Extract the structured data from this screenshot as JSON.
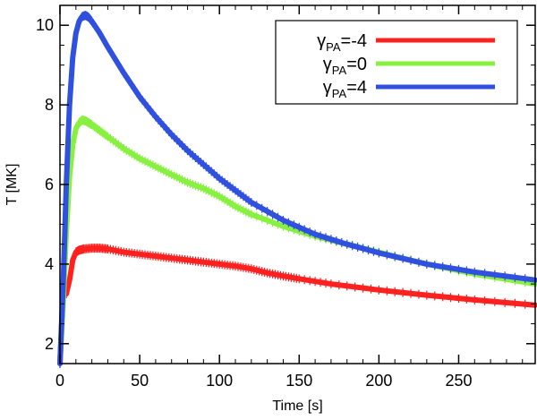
{
  "chart_data": {
    "type": "line",
    "title": "",
    "xlabel": "Time [s]",
    "ylabel": "T [MK]",
    "xlim": [
      0,
      298
    ],
    "ylim": [
      1.5,
      10.5
    ],
    "xticks": [
      0,
      50,
      100,
      150,
      200,
      250
    ],
    "yticks": [
      2,
      4,
      6,
      8,
      10
    ],
    "grid": false,
    "legend_position": "top-right",
    "series": [
      {
        "name": "γPA=-4",
        "legend_symbol": "γ",
        "legend_subscript": "PA",
        "legend_value": "=-4",
        "color": "#ff2020",
        "x": [
          0,
          2,
          4,
          6,
          8,
          10,
          12,
          15,
          20,
          25,
          30,
          40,
          50,
          60,
          70,
          80,
          90,
          100,
          110,
          120,
          130,
          140,
          150,
          170,
          200,
          230,
          260,
          298
        ],
        "y": [
          1.5,
          3.3,
          3.25,
          3.6,
          4.1,
          4.3,
          4.35,
          4.38,
          4.4,
          4.4,
          4.38,
          4.3,
          4.25,
          4.2,
          4.15,
          4.1,
          4.05,
          4.0,
          3.95,
          3.88,
          3.78,
          3.7,
          3.63,
          3.5,
          3.35,
          3.22,
          3.1,
          2.97
        ]
      },
      {
        "name": "γPA=0",
        "legend_symbol": "γ",
        "legend_subscript": "PA",
        "legend_value": "=0",
        "color": "#88f040",
        "x": [
          0,
          2,
          4,
          6,
          8,
          10,
          12,
          14,
          16,
          18,
          20,
          25,
          30,
          40,
          50,
          60,
          70,
          80,
          90,
          100,
          110,
          120,
          140,
          160,
          180,
          200,
          230,
          260,
          298
        ],
        "y": [
          1.5,
          3.0,
          4.8,
          6.2,
          7.0,
          7.4,
          7.55,
          7.62,
          7.6,
          7.55,
          7.5,
          7.35,
          7.2,
          6.9,
          6.65,
          6.45,
          6.25,
          6.05,
          5.9,
          5.7,
          5.45,
          5.25,
          4.95,
          4.7,
          4.5,
          4.3,
          4.0,
          3.75,
          3.5
        ]
      },
      {
        "name": "γPA=4",
        "legend_symbol": "γ",
        "legend_subscript": "PA",
        "legend_value": "=4",
        "color": "#3050e0",
        "x": [
          0,
          2,
          4,
          6,
          8,
          10,
          12,
          14,
          16,
          18,
          20,
          25,
          30,
          40,
          50,
          60,
          70,
          80,
          90,
          100,
          110,
          120,
          140,
          160,
          180,
          200,
          230,
          260,
          298
        ],
        "y": [
          1.5,
          3.5,
          6.0,
          8.0,
          9.2,
          9.8,
          10.1,
          10.22,
          10.25,
          10.2,
          10.1,
          9.8,
          9.45,
          8.8,
          8.2,
          7.7,
          7.25,
          6.85,
          6.5,
          6.15,
          5.85,
          5.55,
          5.1,
          4.75,
          4.5,
          4.28,
          4.0,
          3.8,
          3.6
        ]
      }
    ]
  }
}
